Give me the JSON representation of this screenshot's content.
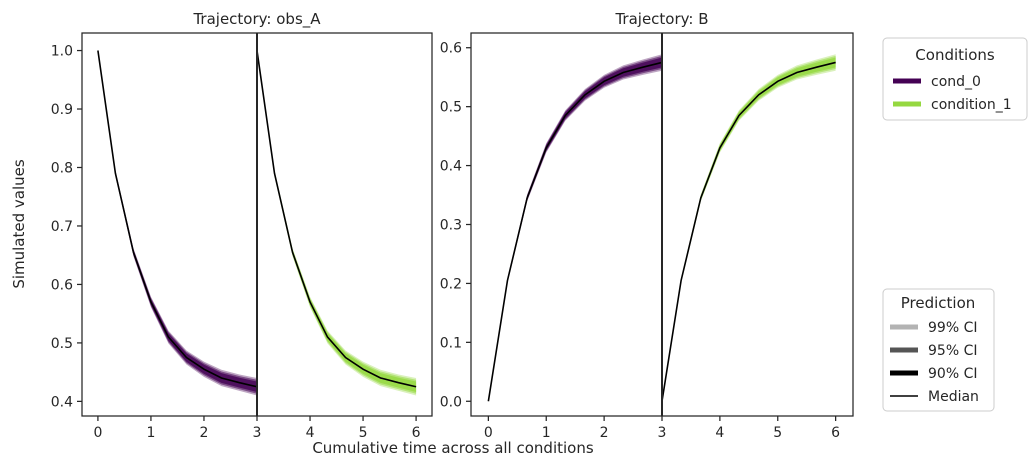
{
  "figure": {
    "xlabel": "Cumulative time across all conditions",
    "ylabel": "Simulated values"
  },
  "colors": {
    "cond_0": "#440154",
    "condition_1": "#95d840",
    "median": "#000000",
    "ci99": "#b3b3b3",
    "ci95": "#555555",
    "ci90": "#000000",
    "axis": "#262626"
  },
  "legend_conditions": {
    "title": "Conditions",
    "items": [
      "cond_0",
      "condition_1"
    ]
  },
  "legend_prediction": {
    "title": "Prediction",
    "items": [
      "99% CI",
      "95% CI",
      "90% CI",
      "Median"
    ]
  },
  "chart_data": [
    {
      "type": "line",
      "title": "Trajectory: obs_A",
      "xlim": [
        -0.3,
        6.3
      ],
      "ylim": [
        0.375,
        1.03
      ],
      "xticks": [
        0,
        1,
        2,
        3,
        4,
        5,
        6
      ],
      "xtick_labels": [
        "0",
        "1",
        "2",
        "3",
        "4",
        "5",
        "6"
      ],
      "yticks": [
        0.4,
        0.5,
        0.6,
        0.7,
        0.8,
        0.9,
        1.0
      ],
      "ytick_labels": [
        "0.4",
        "0.5",
        "0.6",
        "0.7",
        "0.8",
        "0.9",
        "1.0"
      ],
      "vline_x": 3,
      "series": [
        {
          "name": "cond_0",
          "x": [
            0,
            0.33,
            0.67,
            1.0,
            1.33,
            1.67,
            2.0,
            2.33,
            2.67,
            3.0
          ],
          "median": [
            1.0,
            0.79,
            0.655,
            0.57,
            0.51,
            0.475,
            0.455,
            0.44,
            0.432,
            0.425
          ],
          "spread": [
            0.0,
            0.005,
            0.007,
            0.009,
            0.011,
            0.012,
            0.013,
            0.014,
            0.014,
            0.015
          ]
        },
        {
          "name": "condition_1",
          "x": [
            3.0,
            3.33,
            3.67,
            4.0,
            4.33,
            4.67,
            5.0,
            5.33,
            5.67,
            6.0
          ],
          "median": [
            1.0,
            0.79,
            0.655,
            0.57,
            0.51,
            0.475,
            0.455,
            0.44,
            0.432,
            0.425
          ],
          "spread": [
            0.0,
            0.005,
            0.007,
            0.009,
            0.011,
            0.012,
            0.013,
            0.014,
            0.014,
            0.015
          ]
        }
      ]
    },
    {
      "type": "line",
      "title": "Trajectory: B",
      "xlim": [
        -0.3,
        6.3
      ],
      "ylim": [
        -0.025,
        0.625
      ],
      "xticks": [
        0,
        1,
        2,
        3,
        4,
        5,
        6
      ],
      "xtick_labels": [
        "0",
        "1",
        "2",
        "3",
        "4",
        "5",
        "6"
      ],
      "yticks": [
        0.0,
        0.1,
        0.2,
        0.3,
        0.4,
        0.5,
        0.6
      ],
      "ytick_labels": [
        "0.0",
        "0.1",
        "0.2",
        "0.3",
        "0.4",
        "0.5",
        "0.6"
      ],
      "vline_x": 3,
      "series": [
        {
          "name": "cond_0",
          "x": [
            0,
            0.33,
            0.67,
            1.0,
            1.33,
            1.67,
            2.0,
            2.33,
            2.67,
            3.0
          ],
          "median": [
            0.0,
            0.205,
            0.345,
            0.43,
            0.485,
            0.52,
            0.543,
            0.558,
            0.567,
            0.575
          ],
          "spread": [
            0.0,
            0.004,
            0.006,
            0.008,
            0.009,
            0.01,
            0.011,
            0.012,
            0.013,
            0.014
          ]
        },
        {
          "name": "condition_1",
          "x": [
            3.0,
            3.33,
            3.67,
            4.0,
            4.33,
            4.67,
            5.0,
            5.33,
            5.67,
            6.0
          ],
          "median": [
            0.0,
            0.205,
            0.345,
            0.43,
            0.485,
            0.52,
            0.543,
            0.558,
            0.567,
            0.575
          ],
          "spread": [
            0.0,
            0.004,
            0.006,
            0.008,
            0.009,
            0.01,
            0.011,
            0.012,
            0.013,
            0.014
          ]
        }
      ]
    }
  ]
}
